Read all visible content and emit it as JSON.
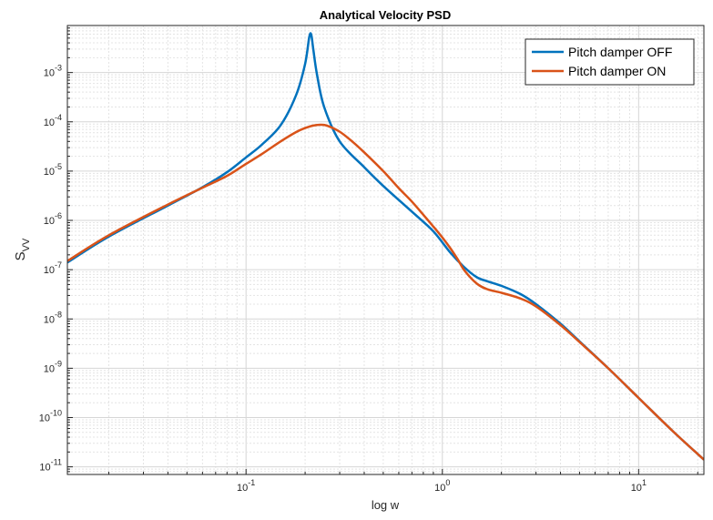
{
  "chart_data": {
    "type": "line",
    "title": "Analytical Velocity PSD",
    "xlabel": "log w",
    "ylabel": "S",
    "ylabel_sub": "VV",
    "xscale": "log",
    "yscale": "log",
    "xlim": [
      0.0123,
      21.5
    ],
    "ylim": [
      7e-12,
      0.009
    ],
    "grid": true,
    "minor_grid": true,
    "legend_position": "top-right",
    "x_ticks": [
      {
        "value": 0.1,
        "base": "10",
        "exp": "-1"
      },
      {
        "value": 1,
        "base": "10",
        "exp": "0"
      },
      {
        "value": 10,
        "base": "10",
        "exp": "1"
      }
    ],
    "y_ticks": [
      {
        "value": 0.001,
        "base": "10",
        "exp": "-3"
      },
      {
        "value": 0.0001,
        "base": "10",
        "exp": "-4"
      },
      {
        "value": 1e-05,
        "base": "10",
        "exp": "-5"
      },
      {
        "value": 1e-06,
        "base": "10",
        "exp": "-6"
      },
      {
        "value": 1e-07,
        "base": "10",
        "exp": "-7"
      },
      {
        "value": 1e-08,
        "base": "10",
        "exp": "-8"
      },
      {
        "value": 1e-09,
        "base": "10",
        "exp": "-9"
      },
      {
        "value": 1e-10,
        "base": "10",
        "exp": "-10"
      },
      {
        "value": 1e-11,
        "base": "10",
        "exp": "-11"
      }
    ],
    "series": [
      {
        "name": "Pitch damper OFF",
        "color": "#0072BD",
        "x": [
          0.0123,
          0.02,
          0.04,
          0.06,
          0.08,
          0.1,
          0.12,
          0.15,
          0.18,
          0.2,
          0.21,
          0.215,
          0.22,
          0.23,
          0.25,
          0.3,
          0.4,
          0.5,
          0.7,
          0.9,
          1.1,
          1.3,
          1.5,
          1.7,
          2.0,
          2.5,
          3.0,
          4.0,
          5.0,
          7.0,
          10.0,
          15.0,
          21.5
        ],
        "values": [
          1.4e-07,
          4.7e-07,
          2e-06,
          4.7e-06,
          9.5e-06,
          1.9e-05,
          3.4e-05,
          8.5e-05,
          0.00035,
          0.0015,
          0.0053,
          0.0058,
          0.003,
          0.0009,
          0.0002,
          4e-05,
          1.2e-05,
          5e-06,
          1.5e-06,
          6e-07,
          2.2e-07,
          1.1e-07,
          7e-08,
          5.8e-08,
          4.7e-08,
          3.2e-08,
          2e-08,
          8e-09,
          3.5e-09,
          1e-09,
          2.5e-10,
          5.2e-11,
          1.4e-11
        ]
      },
      {
        "name": "Pitch damper ON",
        "color": "#D95319",
        "x": [
          0.0123,
          0.02,
          0.04,
          0.06,
          0.08,
          0.1,
          0.12,
          0.15,
          0.18,
          0.2,
          0.22,
          0.24,
          0.26,
          0.3,
          0.35,
          0.4,
          0.5,
          0.6,
          0.7,
          0.8,
          0.9,
          1.0,
          1.1,
          1.2,
          1.3,
          1.5,
          1.7,
          2.0,
          2.5,
          3.0,
          4.0,
          5.0,
          7.0,
          10.0,
          15.0,
          21.5
        ],
        "values": [
          1.5e-07,
          5e-07,
          2.1e-06,
          4.6e-06,
          8e-06,
          1.4e-05,
          2.2e-05,
          4e-05,
          6.2e-05,
          7.5e-05,
          8.4e-05,
          8.7e-05,
          8.3e-05,
          6.3e-05,
          3.9e-05,
          2.4e-05,
          1e-05,
          4.5e-06,
          2.4e-06,
          1.3e-06,
          7.5e-07,
          4.5e-07,
          2.7e-07,
          1.6e-07,
          9.5e-08,
          5.2e-08,
          4e-08,
          3.4e-08,
          2.6e-08,
          1.8e-08,
          7.5e-09,
          3.4e-09,
          1e-09,
          2.5e-10,
          5.2e-11,
          1.4e-11
        ]
      }
    ]
  }
}
